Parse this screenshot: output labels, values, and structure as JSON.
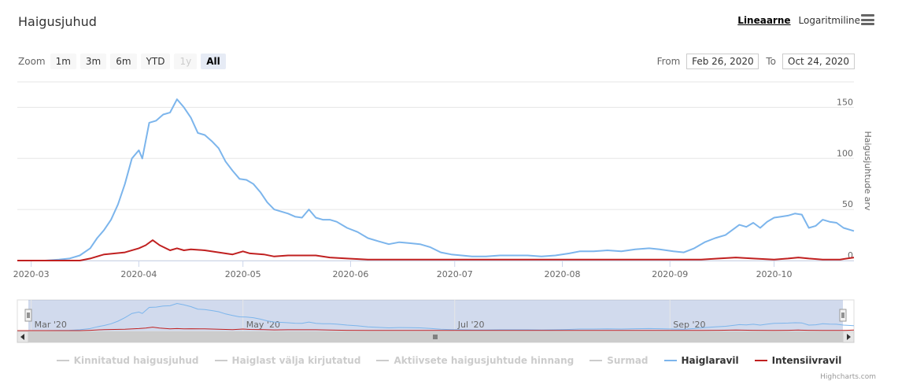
{
  "title": "Haigusjuhud",
  "scale": {
    "linear_label": "Lineaarne",
    "log_label": "Logaritmiline",
    "selected": "linear"
  },
  "zoom": {
    "label": "Zoom",
    "buttons": [
      "1m",
      "3m",
      "6m",
      "YTD",
      "1y",
      "All"
    ],
    "disabled": [
      "1y"
    ],
    "selected": "All"
  },
  "range": {
    "from_label": "From",
    "from_value": "Feb 26, 2020",
    "to_label": "To",
    "to_value": "Oct 24, 2020"
  },
  "credits": "Highcharts.com",
  "chart_data": {
    "type": "line",
    "x_start": "2020-02-26",
    "x_end": "2020-10-24",
    "x_ticks": [
      "2020-03",
      "2020-04",
      "2020-05",
      "2020-06",
      "2020-07",
      "2020-08",
      "2020-09",
      "2020-10"
    ],
    "navigator_ticks": [
      "Mar '20",
      "May '20",
      "Jul '20",
      "Sep '20"
    ],
    "ylabel": "Haigusjuhtude arv",
    "ylim": [
      0,
      175
    ],
    "y_ticks": [
      0,
      50,
      100,
      150
    ],
    "grid": true,
    "legend_position": "bottom",
    "series": [
      {
        "name": "Kinnitatud haigusjuhud",
        "visible": false,
        "color": "#cccccc"
      },
      {
        "name": "Haiglast välja kirjutatud",
        "visible": false,
        "color": "#cccccc"
      },
      {
        "name": "Aktiivsete haigusjuhtude hinnang",
        "visible": false,
        "color": "#cccccc"
      },
      {
        "name": "Surmad",
        "visible": false,
        "color": "#cccccc"
      },
      {
        "name": "Haiglaravil",
        "visible": true,
        "color": "#7cb5ec",
        "points": [
          [
            "2020-02-26",
            0
          ],
          [
            "2020-03-01",
            0
          ],
          [
            "2020-03-05",
            0
          ],
          [
            "2020-03-09",
            1
          ],
          [
            "2020-03-12",
            2
          ],
          [
            "2020-03-15",
            5
          ],
          [
            "2020-03-18",
            12
          ],
          [
            "2020-03-20",
            22
          ],
          [
            "2020-03-22",
            30
          ],
          [
            "2020-03-24",
            40
          ],
          [
            "2020-03-26",
            55
          ],
          [
            "2020-03-28",
            75
          ],
          [
            "2020-03-30",
            100
          ],
          [
            "2020-04-01",
            108
          ],
          [
            "2020-04-02",
            100
          ],
          [
            "2020-04-04",
            135
          ],
          [
            "2020-04-06",
            137
          ],
          [
            "2020-04-08",
            143
          ],
          [
            "2020-04-10",
            145
          ],
          [
            "2020-04-12",
            158
          ],
          [
            "2020-04-14",
            150
          ],
          [
            "2020-04-16",
            140
          ],
          [
            "2020-04-18",
            125
          ],
          [
            "2020-04-20",
            123
          ],
          [
            "2020-04-22",
            117
          ],
          [
            "2020-04-24",
            110
          ],
          [
            "2020-04-26",
            97
          ],
          [
            "2020-04-28",
            88
          ],
          [
            "2020-04-30",
            80
          ],
          [
            "2020-05-02",
            79
          ],
          [
            "2020-05-04",
            75
          ],
          [
            "2020-05-06",
            67
          ],
          [
            "2020-05-08",
            57
          ],
          [
            "2020-05-10",
            50
          ],
          [
            "2020-05-12",
            48
          ],
          [
            "2020-05-14",
            46
          ],
          [
            "2020-05-16",
            43
          ],
          [
            "2020-05-18",
            42
          ],
          [
            "2020-05-20",
            50
          ],
          [
            "2020-05-22",
            42
          ],
          [
            "2020-05-24",
            40
          ],
          [
            "2020-05-26",
            40
          ],
          [
            "2020-05-28",
            38
          ],
          [
            "2020-05-31",
            32
          ],
          [
            "2020-06-03",
            28
          ],
          [
            "2020-06-06",
            22
          ],
          [
            "2020-06-09",
            19
          ],
          [
            "2020-06-12",
            16
          ],
          [
            "2020-06-15",
            18
          ],
          [
            "2020-06-18",
            17
          ],
          [
            "2020-06-21",
            16
          ],
          [
            "2020-06-24",
            13
          ],
          [
            "2020-06-27",
            8
          ],
          [
            "2020-06-30",
            6
          ],
          [
            "2020-07-03",
            5
          ],
          [
            "2020-07-06",
            4
          ],
          [
            "2020-07-10",
            4
          ],
          [
            "2020-07-14",
            5
          ],
          [
            "2020-07-18",
            5
          ],
          [
            "2020-07-22",
            5
          ],
          [
            "2020-07-26",
            4
          ],
          [
            "2020-07-30",
            5
          ],
          [
            "2020-08-03",
            7
          ],
          [
            "2020-08-06",
            9
          ],
          [
            "2020-08-10",
            9
          ],
          [
            "2020-08-14",
            10
          ],
          [
            "2020-08-18",
            9
          ],
          [
            "2020-08-22",
            11
          ],
          [
            "2020-08-26",
            12
          ],
          [
            "2020-08-29",
            11
          ],
          [
            "2020-09-02",
            9
          ],
          [
            "2020-09-05",
            8
          ],
          [
            "2020-09-08",
            12
          ],
          [
            "2020-09-11",
            18
          ],
          [
            "2020-09-14",
            22
          ],
          [
            "2020-09-17",
            25
          ],
          [
            "2020-09-19",
            30
          ],
          [
            "2020-09-21",
            35
          ],
          [
            "2020-09-23",
            33
          ],
          [
            "2020-09-25",
            37
          ],
          [
            "2020-09-27",
            32
          ],
          [
            "2020-09-29",
            38
          ],
          [
            "2020-10-01",
            42
          ],
          [
            "2020-10-03",
            43
          ],
          [
            "2020-10-05",
            44
          ],
          [
            "2020-10-07",
            46
          ],
          [
            "2020-10-09",
            45
          ],
          [
            "2020-10-11",
            32
          ],
          [
            "2020-10-13",
            34
          ],
          [
            "2020-10-15",
            40
          ],
          [
            "2020-10-17",
            38
          ],
          [
            "2020-10-19",
            37
          ],
          [
            "2020-10-21",
            32
          ],
          [
            "2020-10-24",
            29
          ]
        ]
      },
      {
        "name": "Intensiivravil",
        "visible": true,
        "color": "#c02020",
        "points": [
          [
            "2020-02-26",
            0
          ],
          [
            "2020-03-15",
            0
          ],
          [
            "2020-03-18",
            2
          ],
          [
            "2020-03-22",
            6
          ],
          [
            "2020-03-28",
            8
          ],
          [
            "2020-04-01",
            12
          ],
          [
            "2020-04-03",
            15
          ],
          [
            "2020-04-05",
            20
          ],
          [
            "2020-04-07",
            15
          ],
          [
            "2020-04-10",
            10
          ],
          [
            "2020-04-12",
            12
          ],
          [
            "2020-04-14",
            10
          ],
          [
            "2020-04-16",
            11
          ],
          [
            "2020-04-20",
            10
          ],
          [
            "2020-04-24",
            8
          ],
          [
            "2020-04-28",
            6
          ],
          [
            "2020-05-01",
            9
          ],
          [
            "2020-05-03",
            7
          ],
          [
            "2020-05-07",
            6
          ],
          [
            "2020-05-10",
            4
          ],
          [
            "2020-05-14",
            5
          ],
          [
            "2020-05-18",
            5
          ],
          [
            "2020-05-22",
            5
          ],
          [
            "2020-05-26",
            3
          ],
          [
            "2020-05-31",
            2
          ],
          [
            "2020-06-06",
            1
          ],
          [
            "2020-06-12",
            1
          ],
          [
            "2020-06-18",
            1
          ],
          [
            "2020-06-24",
            1
          ],
          [
            "2020-07-01",
            1
          ],
          [
            "2020-07-10",
            1
          ],
          [
            "2020-07-20",
            1
          ],
          [
            "2020-08-01",
            1
          ],
          [
            "2020-08-10",
            1
          ],
          [
            "2020-08-20",
            1
          ],
          [
            "2020-09-01",
            1
          ],
          [
            "2020-09-10",
            1
          ],
          [
            "2020-09-15",
            2
          ],
          [
            "2020-09-20",
            3
          ],
          [
            "2020-09-25",
            2
          ],
          [
            "2020-10-01",
            1
          ],
          [
            "2020-10-05",
            2
          ],
          [
            "2020-10-08",
            3
          ],
          [
            "2020-10-11",
            2
          ],
          [
            "2020-10-15",
            1
          ],
          [
            "2020-10-20",
            1
          ],
          [
            "2020-10-22",
            2
          ],
          [
            "2020-10-24",
            3
          ]
        ]
      }
    ]
  }
}
